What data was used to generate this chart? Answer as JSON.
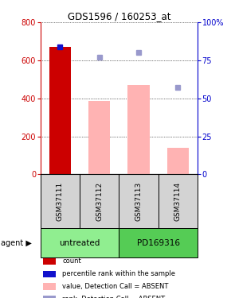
{
  "title": "GDS1596 / 160253_at",
  "samples": [
    "GSM37111",
    "GSM37112",
    "GSM37113",
    "GSM37114"
  ],
  "bar_values": [
    670,
    385,
    470,
    140
  ],
  "bar_colors": [
    "#cc0000",
    "#ffb3b3",
    "#ffb3b3",
    "#ffb3b3"
  ],
  "rank_values": [
    84,
    77,
    80,
    57
  ],
  "rank_colors": [
    "#1111cc",
    "#9999cc",
    "#9999cc",
    "#9999cc"
  ],
  "agent_groups": [
    {
      "label": "untreated",
      "span": [
        0,
        2
      ],
      "color": "#90ee90"
    },
    {
      "label": "PD169316",
      "span": [
        2,
        4
      ],
      "color": "#55cc55"
    }
  ],
  "ylim_left": [
    0,
    800
  ],
  "ylim_right": [
    0,
    100
  ],
  "yticks_left": [
    0,
    200,
    400,
    600,
    800
  ],
  "yticks_right": [
    0,
    25,
    50,
    75,
    100
  ],
  "left_tick_color": "#cc0000",
  "right_tick_color": "#0000cc",
  "legend_items": [
    {
      "color": "#cc0000",
      "label": "count"
    },
    {
      "color": "#1111cc",
      "label": "percentile rank within the sample"
    },
    {
      "color": "#ffb3b3",
      "label": "value, Detection Call = ABSENT"
    },
    {
      "color": "#9999cc",
      "label": "rank, Detection Call = ABSENT"
    }
  ],
  "fig_width": 2.9,
  "fig_height": 3.75,
  "dpi": 100
}
